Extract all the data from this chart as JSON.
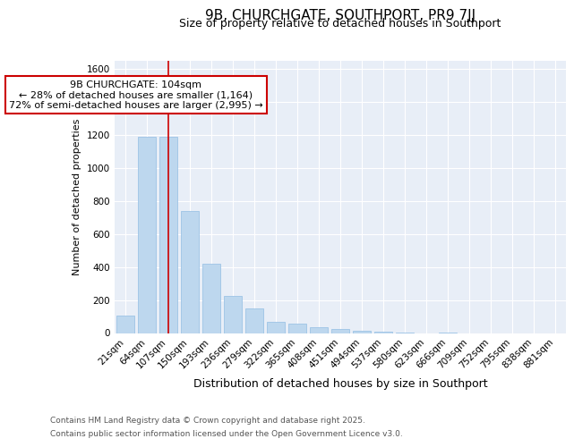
{
  "title": "9B, CHURCHGATE, SOUTHPORT, PR9 7JJ",
  "subtitle": "Size of property relative to detached houses in Southport",
  "xlabel": "Distribution of detached houses by size in Southport",
  "ylabel": "Number of detached properties",
  "categories": [
    "21sqm",
    "64sqm",
    "107sqm",
    "150sqm",
    "193sqm",
    "236sqm",
    "279sqm",
    "322sqm",
    "365sqm",
    "408sqm",
    "451sqm",
    "494sqm",
    "537sqm",
    "580sqm",
    "623sqm",
    "666sqm",
    "709sqm",
    "752sqm",
    "795sqm",
    "838sqm",
    "881sqm"
  ],
  "values": [
    105,
    1190,
    1190,
    740,
    420,
    225,
    150,
    70,
    55,
    35,
    25,
    15,
    10,
    5,
    0,
    5,
    0,
    0,
    0,
    0,
    0
  ],
  "bar_color": "#bdd7ee",
  "bar_edge_color": "#9dc3e6",
  "vline_x_index": 2,
  "vline_color": "#cc0000",
  "vline_label": "9B CHURCHGATE: 104sqm",
  "annotation_line1": "← 28% of detached houses are smaller (1,164)",
  "annotation_line2": "72% of semi-detached houses are larger (2,995) →",
  "annotation_box_facecolor": "#ffffff",
  "annotation_box_edgecolor": "#cc0000",
  "ylim": [
    0,
    1650
  ],
  "yticks": [
    0,
    200,
    400,
    600,
    800,
    1000,
    1200,
    1400,
    1600
  ],
  "footer_line1": "Contains HM Land Registry data © Crown copyright and database right 2025.",
  "footer_line2": "Contains public sector information licensed under the Open Government Licence v3.0.",
  "fig_bg_color": "#ffffff",
  "plot_bg_color": "#e8eef7",
  "grid_color": "#ffffff",
  "title_fontsize": 11,
  "subtitle_fontsize": 9,
  "xlabel_fontsize": 9,
  "ylabel_fontsize": 8,
  "tick_fontsize": 7.5,
  "annot_fontsize": 8,
  "footer_fontsize": 6.5
}
